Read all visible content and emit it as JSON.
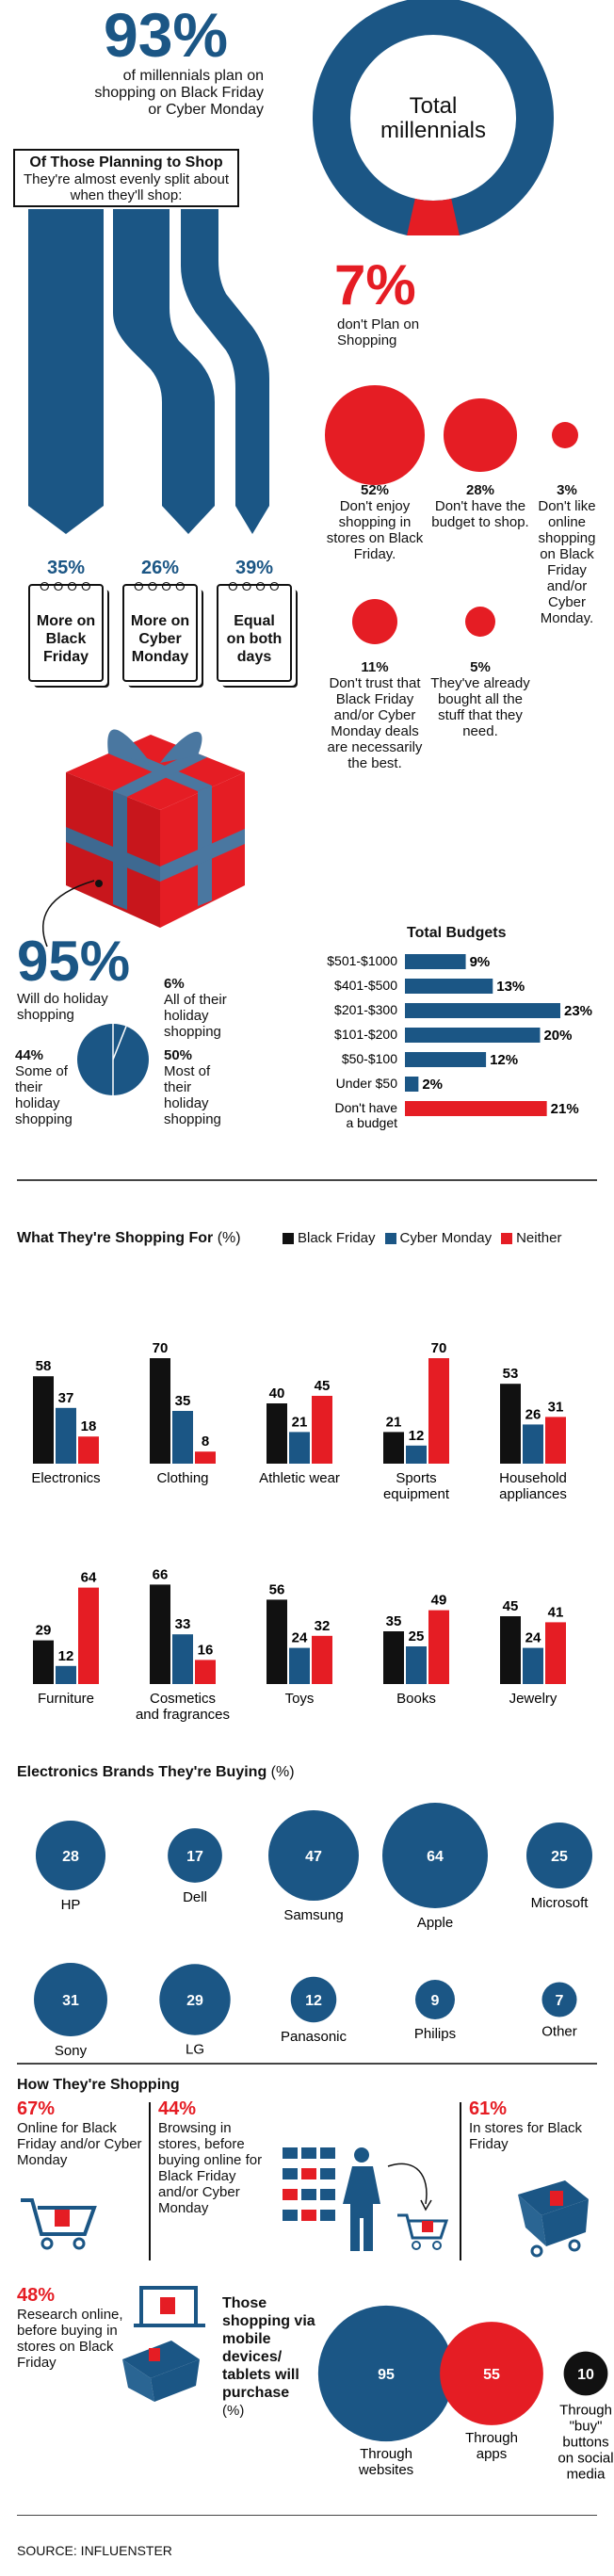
{
  "colors": {
    "blue": "#1b5685",
    "red": "#e51d24",
    "black": "#111111"
  },
  "hero": {
    "percent": "93%",
    "text": "of millennials plan on shopping on Black Friday or Cyber Monday",
    "donut_label": "Total millennials",
    "plan_share": 93,
    "not_plan_percent": "7%",
    "not_plan_text": "don't Plan on Shopping"
  },
  "timing": {
    "heading": "Of Those Planning to Shop",
    "subheading": "They're almost evenly split about when they'll shop:",
    "items": [
      {
        "pct": "35%",
        "label": "More on Black Friday"
      },
      {
        "pct": "26%",
        "label": "More on Cyber Monday"
      },
      {
        "pct": "39%",
        "label": "Equal on both days"
      }
    ]
  },
  "reasons": [
    {
      "pct": 52,
      "label": "52%",
      "text": "Don't enjoy shopping in stores on Black Friday."
    },
    {
      "pct": 28,
      "label": "28%",
      "text": "Don't have the budget to shop."
    },
    {
      "pct": 3,
      "label": "3%",
      "text": "Don't like online shopping on Black Friday and/or Cyber Monday."
    },
    {
      "pct": 11,
      "label": "11%",
      "text": "Don't trust that Black Friday and/or Cyber Monday deals are necessarily the best."
    },
    {
      "pct": 5,
      "label": "5%",
      "text": "They've already bought all the stuff that they need."
    }
  ],
  "holiday": {
    "percent": "95%",
    "text": "Will do holiday shopping",
    "slices": [
      {
        "value": 6,
        "label": "6%",
        "text": "All of their holiday shopping"
      },
      {
        "value": 44,
        "label": "44%",
        "text": "Some of their holiday shopping"
      },
      {
        "value": 50,
        "label": "50%",
        "text": "Most of their holiday shopping"
      }
    ]
  },
  "chart_data": [
    {
      "type": "bar",
      "title": "Total Budgets",
      "categories": [
        "$501-$1000",
        "$401-$500",
        "$201-$300",
        "$101-$200",
        "$50-$100",
        "Under $50",
        "Don't have a budget"
      ],
      "values": [
        9,
        13,
        23,
        20,
        12,
        2,
        21
      ],
      "value_labels": [
        "9%",
        "13%",
        "23%",
        "20%",
        "12%",
        "2%",
        "21%"
      ],
      "bar_colors": [
        "#1b5685",
        "#1b5685",
        "#1b5685",
        "#1b5685",
        "#1b5685",
        "#1b5685",
        "#e51d24"
      ]
    },
    {
      "type": "bar",
      "title": "What They're Shopping For",
      "unit": "(%)",
      "legend": [
        "Black Friday",
        "Cyber Monday",
        "Neither"
      ],
      "series_colors": [
        "#111111",
        "#1b5685",
        "#e51d24"
      ],
      "categories": [
        "Electronics",
        "Clothing",
        "Athletic wear",
        "Sports equipment",
        "Household appliances",
        "Furniture",
        "Cosmetics and fragrances",
        "Toys",
        "Books",
        "Jewelry"
      ],
      "series": [
        {
          "name": "Black Friday",
          "values": [
            58,
            70,
            40,
            21,
            53,
            29,
            66,
            56,
            35,
            45
          ]
        },
        {
          "name": "Cyber Monday",
          "values": [
            37,
            35,
            21,
            12,
            26,
            12,
            33,
            24,
            25,
            24
          ]
        },
        {
          "name": "Neither",
          "values": [
            18,
            8,
            45,
            70,
            31,
            64,
            16,
            32,
            49,
            41
          ]
        }
      ]
    },
    {
      "type": "scatter",
      "title": "Electronics Brands They're Buying",
      "unit": "(%)",
      "categories": [
        "HP",
        "Dell",
        "Samsung",
        "Apple",
        "Microsoft",
        "Sony",
        "LG",
        "Panasonic",
        "Philips",
        "Other"
      ],
      "values": [
        28,
        17,
        47,
        64,
        25,
        31,
        29,
        12,
        9,
        7
      ]
    },
    {
      "type": "scatter",
      "title": "Those shopping via mobile devices/ tablets will purchase",
      "unit": "(%)",
      "categories": [
        "Through websites",
        "Through apps",
        "Through \"buy\" buttons on social media"
      ],
      "values": [
        95,
        55,
        10
      ],
      "colors": [
        "#1b5685",
        "#e51d24",
        "#111111"
      ]
    }
  ],
  "how": {
    "title": "How They're Shopping",
    "items": [
      {
        "pct": "67%",
        "text": "Online for Black Friday and/or Cyber Monday"
      },
      {
        "pct": "44%",
        "text": "Browsing in stores, before buying online for Black Friday and/or Cyber Monday"
      },
      {
        "pct": "61%",
        "text": "In stores for Black Friday"
      },
      {
        "pct": "48%",
        "text": "Research online, before buying in stores on Black Friday"
      }
    ]
  },
  "source": "SOURCE: INFLUENSTER"
}
